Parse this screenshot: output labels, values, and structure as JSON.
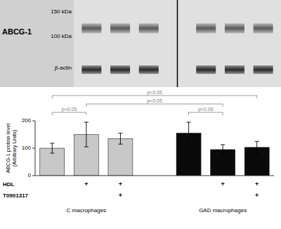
{
  "chart_data": {
    "type": "bar",
    "ylabel": "ABCG-1 protein level\n(Arbitrary Units)",
    "values": [
      100,
      150,
      135,
      155,
      95,
      103
    ],
    "errors": [
      18,
      45,
      20,
      40,
      18,
      22
    ],
    "colors": [
      "#c8c8c8",
      "#c8c8c8",
      "#c8c8c8",
      "#0a0a0a",
      "#0a0a0a",
      "#0a0a0a"
    ],
    "groups": [
      "C macrophages",
      "C macrophages",
      "C macrophages",
      "GAD macrophages",
      "GAD macrophages",
      "GAD macrophages"
    ],
    "conditions": [
      {
        "label": "HDL",
        "marks": [
          null,
          "+",
          "+",
          null,
          "+",
          "+"
        ]
      },
      {
        "label": "T0901317",
        "marks": [
          null,
          null,
          "+",
          null,
          null,
          "+"
        ]
      }
    ],
    "annotations": [
      "p<0.05",
      "p<0.05",
      "p<0.05",
      "p<0.05"
    ],
    "ylim": [
      0,
      200
    ],
    "yticks": [
      0,
      100,
      200
    ]
  },
  "blot": {
    "label": "ABCG-1",
    "markers": [
      "150 kDa",
      "100 kDa"
    ],
    "loading_control": "β-actin",
    "colors": {
      "labels": "#d0d0d0",
      "blot": "#e0e0e0"
    }
  }
}
